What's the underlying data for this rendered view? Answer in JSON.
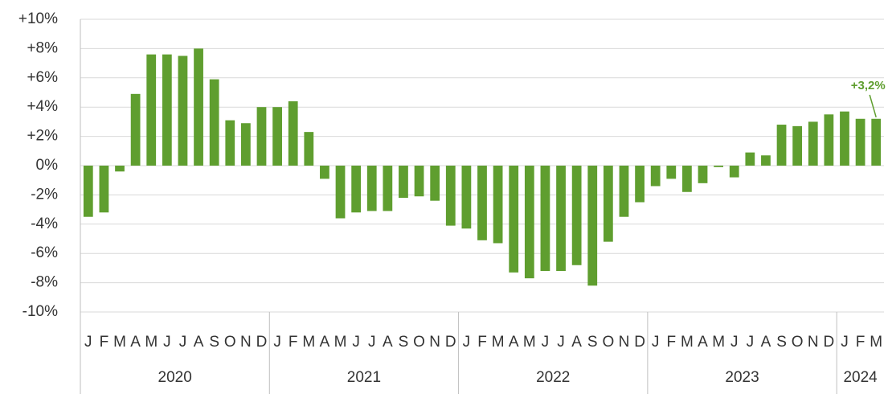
{
  "chart_data": {
    "type": "bar",
    "categories": [
      "J",
      "F",
      "M",
      "A",
      "M",
      "J",
      "J",
      "A",
      "S",
      "O",
      "N",
      "D",
      "J",
      "F",
      "M",
      "A",
      "M",
      "J",
      "J",
      "A",
      "S",
      "O",
      "N",
      "D",
      "J",
      "F",
      "M",
      "A",
      "M",
      "J",
      "J",
      "A",
      "S",
      "O",
      "N",
      "D",
      "J",
      "F",
      "M",
      "A",
      "M",
      "J",
      "J",
      "A",
      "S",
      "O",
      "N",
      "D",
      "J",
      "F",
      "M"
    ],
    "values": [
      -3.5,
      -3.2,
      -0.4,
      4.9,
      7.6,
      7.6,
      7.5,
      8.0,
      5.9,
      3.1,
      2.9,
      4.0,
      4.0,
      4.4,
      2.3,
      -0.9,
      -3.6,
      -3.2,
      -3.1,
      -3.1,
      -2.2,
      -2.1,
      -2.4,
      -4.1,
      -4.3,
      -5.1,
      -5.3,
      -7.3,
      -7.7,
      -7.2,
      -7.2,
      -6.8,
      -8.2,
      -5.2,
      -3.5,
      -2.5,
      -1.4,
      -0.9,
      -1.8,
      -1.2,
      -0.1,
      -0.8,
      0.9,
      0.7,
      2.8,
      2.7,
      3.0,
      3.5,
      3.7,
      3.2,
      3.2
    ],
    "groups": [
      {
        "label": "2020",
        "months": 12
      },
      {
        "label": "2021",
        "months": 12
      },
      {
        "label": "2022",
        "months": 12
      },
      {
        "label": "2023",
        "months": 12
      },
      {
        "label": "2024",
        "months": 3
      }
    ],
    "color": "#5f9e2f",
    "annotation": "+3,2%",
    "ylim": [
      -10,
      10
    ],
    "yticks": [
      {
        "value": -10,
        "label": "-10%"
      },
      {
        "value": -8,
        "label": "-8%"
      },
      {
        "value": -6,
        "label": "-6%"
      },
      {
        "value": -4,
        "label": "-4%"
      },
      {
        "value": -2,
        "label": "-2%"
      },
      {
        "value": 0,
        "label": "0%"
      },
      {
        "value": 2,
        "label": "+2%"
      },
      {
        "value": 4,
        "label": "+4%"
      },
      {
        "value": 6,
        "label": "+6%"
      },
      {
        "value": 8,
        "label": "+8%"
      },
      {
        "value": 10,
        "label": "+10%"
      }
    ],
    "grid": true
  }
}
